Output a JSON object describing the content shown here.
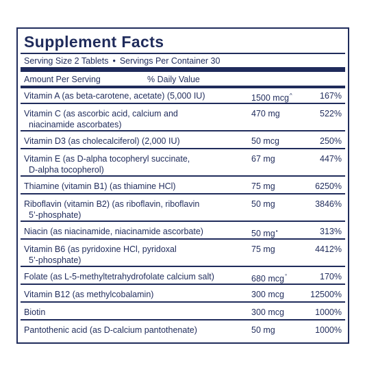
{
  "title": "Supplement Facts",
  "serving_size": "Serving Size 2 Tablets",
  "bullet": "•",
  "servings_per_container": "Servings Per Container 30",
  "header": {
    "amount": "Amount Per Serving",
    "dv": "% Daily Value"
  },
  "rows": [
    {
      "name": "Vitamin A (as beta-carotene, acetate) (5,000 IU)",
      "name2": "",
      "amount": "1500 mcg",
      "symbol": "^",
      "dv": "167%"
    },
    {
      "name": "Vitamin C (as ascorbic acid, calcium and",
      "name2": "niacinamide ascorbates)",
      "amount": "470 mg",
      "symbol": "",
      "dv": "522%"
    },
    {
      "name": "Vitamin D3 (as cholecalciferol) (2,000 IU)",
      "name2": "",
      "amount": "50 mcg",
      "symbol": "",
      "dv": "250%"
    },
    {
      "name": "Vitamin E (as D-alpha tocopheryl succinate,",
      "name2": "D-alpha tocopherol)",
      "amount": "67 mg",
      "symbol": "",
      "dv": "447%"
    },
    {
      "name": "Thiamine (vitamin B1) (as thiamine HCl)",
      "name2": "",
      "amount": "75 mg",
      "symbol": "",
      "dv": "6250%"
    },
    {
      "name": "Riboflavin (vitamin B2) (as riboflavin, riboflavin",
      "name2": "5’-phosphate)",
      "amount": "50 mg",
      "symbol": "",
      "dv": "3846%"
    },
    {
      "name": "Niacin (as niacinamide, niacinamide ascorbate)",
      "name2": "",
      "amount": "50 mg",
      "symbol": "•",
      "dv": "313%"
    },
    {
      "name": "Vitamin B6 (as pyridoxine HCl, pyridoxal",
      "name2": "5’-phosphate)",
      "amount": "75 mg",
      "symbol": "",
      "dv": "4412%"
    },
    {
      "name": "Folate (as L-5-methyltetrahydrofolate calcium salt)",
      "name2": "",
      "amount": "680 mcg",
      "symbol": "°",
      "dv": "170%"
    },
    {
      "name": "Vitamin B12 (as methylcobalamin)",
      "name2": "",
      "amount": "300 mcg",
      "symbol": "",
      "dv": "12500%"
    },
    {
      "name": "Biotin",
      "name2": "",
      "amount": "300 mcg",
      "symbol": "",
      "dv": "1000%"
    },
    {
      "name": "Pantothenic acid (as D-calcium pantothenate)",
      "name2": "",
      "amount": "50 mg",
      "symbol": "",
      "dv": "1000%"
    }
  ]
}
